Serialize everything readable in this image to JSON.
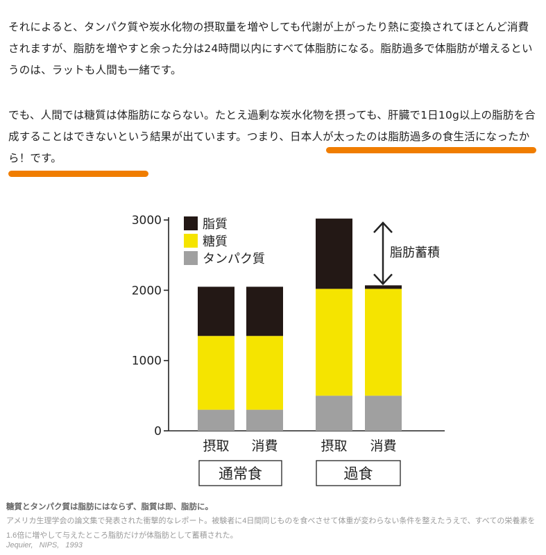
{
  "paragraph1": "それによると、タンパク質や炭水化物の摂取量を増やしても代謝が上がったり熱に変換されてほとんど消費されますが、脂肪を増やすと余った分は24時間以内にすべて体脂肪になる。脂肪過多で体脂肪が増えるというのは、ラットも人間も一緒です。",
  "paragraph2": {
    "text_before": "でも、人間では糖質は体脂肪にならない。たとえ過剰な炭水化物を摂っても、肝臓で1日10g以上の脂肪を合成することはできないという結果が出ています。",
    "highlight": "つまり、日本人が太ったのは脂肪過多の食生活になったから！です。"
  },
  "colors": {
    "fat": "#231815",
    "sugar": "#f5e400",
    "protein": "#a0a0a0",
    "accent_underline": "#f07d00"
  },
  "chart_data": {
    "type": "bar",
    "stacked": true,
    "categories": [
      "摂取",
      "消費",
      "摂取",
      "消費"
    ],
    "groups": [
      {
        "label": "通常食",
        "categories": [
          "摂取",
          "消費"
        ]
      },
      {
        "label": "過食",
        "categories": [
          "摂取",
          "消費"
        ]
      }
    ],
    "series": [
      {
        "name": "タンパク質",
        "color": "#a0a0a0",
        "values": [
          300,
          300,
          500,
          500
        ]
      },
      {
        "name": "糖質",
        "color": "#f5e400",
        "values": [
          1050,
          1050,
          1520,
          1520
        ]
      },
      {
        "name": "脂質",
        "color": "#231815",
        "values": [
          700,
          700,
          1000,
          50
        ]
      }
    ],
    "yticks": [
      0,
      1000,
      2000,
      3000
    ],
    "ylim": [
      0,
      3000
    ],
    "legend_position": "top-left",
    "annotation": "脂肪蓄積"
  },
  "caption": {
    "title": "糖質とタンパク質は脂肪にはならず、脂質は即、脂肪に。",
    "body": "アメリカ生理学会の論文集で発表された衝撃的なレポート。被験者に4日間同じものを食べさせて体重が変わらない条件を整えたうえで、すべての栄養素を1.6倍に増やして与えたところ脂肪だけが体脂肪として蓄積された。",
    "source": "Jequier,  NIPS,  1993"
  }
}
